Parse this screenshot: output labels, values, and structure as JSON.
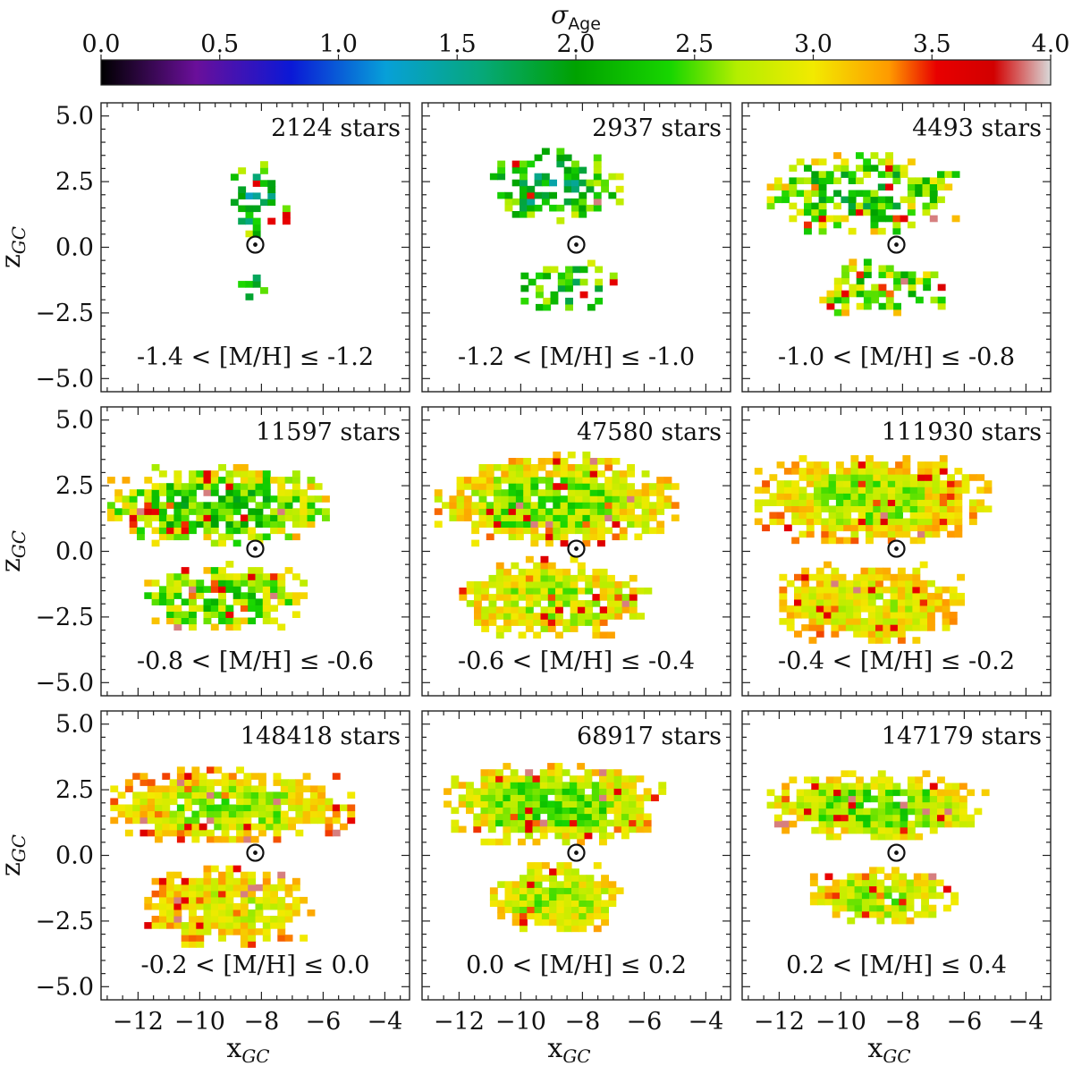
{
  "chart_data": {
    "type": "heatmap",
    "figure_title": "",
    "colorbar": {
      "label": "σ",
      "label_sub": "Age",
      "range": [
        0.0,
        4.0
      ],
      "ticks": [
        "0.0",
        "0.5",
        "1.0",
        "1.5",
        "2.0",
        "2.5",
        "3.0",
        "3.5",
        "4.0"
      ],
      "colormap": "nipy_spectral-like",
      "stops": [
        [
          0.0,
          "#000000"
        ],
        [
          0.1,
          "#6a0f9a"
        ],
        [
          0.2,
          "#0b18d6"
        ],
        [
          0.3,
          "#07a0d8"
        ],
        [
          0.4,
          "#06a87a"
        ],
        [
          0.5,
          "#00a200"
        ],
        [
          0.6,
          "#18d600"
        ],
        [
          0.67,
          "#b4ee00"
        ],
        [
          0.75,
          "#f2ea00"
        ],
        [
          0.83,
          "#ff9a00"
        ],
        [
          0.88,
          "#e80000"
        ],
        [
          0.94,
          "#d20000"
        ],
        [
          1.0,
          "#d9d9d9"
        ]
      ]
    },
    "xlabel": "x",
    "xlabel_sub": "GC",
    "ylabel": "z",
    "ylabel_sub": "GC",
    "xlim": [
      -13.2,
      -3.2
    ],
    "ylim": [
      -5.5,
      5.5
    ],
    "xticks": [
      "−12",
      "−10",
      "−8",
      "−6",
      "−4"
    ],
    "yticks": [
      "5.0",
      "2.5",
      "0.0",
      "−2.5",
      "−5.0"
    ],
    "sun_position": [
      -8.2,
      0.1
    ],
    "panels": [
      {
        "label": "-1.4 < [M/H] ≤ -1.2",
        "count": "2124 stars",
        "mh_center": -1.3,
        "upper": {
          "xmin": -9.0,
          "xmax": -7.0,
          "zmin": 0.4,
          "zmax": 3.2,
          "density": 0.5
        },
        "lower": {
          "xmin": -9.0,
          "xmax": -7.5,
          "zmin": -2.0,
          "zmax": -1.0,
          "density": 0.45
        },
        "sigma_mean": 1.95,
        "sigma_spread": 0.55
      },
      {
        "label": "-1.2 < [M/H] ≤ -1.0",
        "count": "2937 stars",
        "mh_center": -1.1,
        "upper": {
          "xmin": -11.0,
          "xmax": -6.8,
          "zmin": 0.9,
          "zmax": 3.6,
          "density": 0.55
        },
        "lower": {
          "xmin": -10.0,
          "xmax": -7.0,
          "zmin": -2.4,
          "zmax": -0.6,
          "density": 0.5
        },
        "sigma_mean": 2.1,
        "sigma_spread": 0.55
      },
      {
        "label": "-1.0 < [M/H] ≤ -0.8",
        "count": "4493 stars",
        "mh_center": -0.9,
        "upper": {
          "xmin": -12.4,
          "xmax": -6.3,
          "zmin": 0.5,
          "zmax": 3.6,
          "density": 0.65
        },
        "lower": {
          "xmin": -10.7,
          "xmax": -6.8,
          "zmin": -2.6,
          "zmax": -0.5,
          "density": 0.62
        },
        "sigma_mean": 2.45,
        "sigma_spread": 0.55
      },
      {
        "label": "-0.8 < [M/H] ≤ -0.6",
        "count": "11597 stars",
        "mh_center": -0.7,
        "upper": {
          "xmin": -13.0,
          "xmax": -5.8,
          "zmin": 0.2,
          "zmax": 3.3,
          "density": 0.85
        },
        "lower": {
          "xmin": -11.8,
          "xmax": -6.6,
          "zmin": -3.0,
          "zmax": -0.5,
          "density": 0.8
        },
        "sigma_mean": 2.5,
        "sigma_spread": 0.45
      },
      {
        "label": "-0.6 < [M/H] ≤ -0.4",
        "count": "47580 stars",
        "mh_center": -0.5,
        "upper": {
          "xmin": -12.8,
          "xmax": -5.0,
          "zmin": 0.2,
          "zmax": 3.6,
          "density": 0.93
        },
        "lower": {
          "xmin": -12.0,
          "xmax": -5.8,
          "zmin": -3.3,
          "zmax": -0.4,
          "density": 0.9
        },
        "sigma_mean": 2.75,
        "sigma_spread": 0.35
      },
      {
        "label": "-0.4 < [M/H] ≤ -0.2",
        "count": "111930 stars",
        "mh_center": -0.3,
        "upper": {
          "xmin": -12.8,
          "xmax": -5.3,
          "zmin": 0.3,
          "zmax": 3.6,
          "density": 0.95
        },
        "lower": {
          "xmin": -12.0,
          "xmax": -6.0,
          "zmin": -3.5,
          "zmax": -0.4,
          "density": 0.93
        },
        "sigma_mean": 2.85,
        "sigma_spread": 0.3
      },
      {
        "label": "-0.2 < [M/H] ≤ 0.0",
        "count": "148418 stars",
        "mh_center": -0.1,
        "upper": {
          "xmin": -12.9,
          "xmax": -5.1,
          "zmin": 0.5,
          "zmax": 3.3,
          "density": 0.96
        },
        "lower": {
          "xmin": -11.8,
          "xmax": -6.5,
          "zmin": -3.5,
          "zmax": -0.5,
          "density": 0.93
        },
        "sigma_mean": 2.85,
        "sigma_spread": 0.3
      },
      {
        "label": "0.0 < [M/H] ≤ 0.2",
        "count": "68917 stars",
        "mh_center": 0.1,
        "upper": {
          "xmin": -12.5,
          "xmax": -5.3,
          "zmin": 0.4,
          "zmax": 3.4,
          "density": 0.95
        },
        "lower": {
          "xmin": -11.0,
          "xmax": -6.8,
          "zmin": -2.9,
          "zmax": -0.3,
          "density": 0.92
        },
        "sigma_mean": 2.7,
        "sigma_spread": 0.3
      },
      {
        "label": "0.2 < [M/H] ≤ 0.4",
        "count": "147179 stars",
        "mh_center": 0.3,
        "upper": {
          "xmin": -12.4,
          "xmax": -5.4,
          "zmin": 0.6,
          "zmax": 3.1,
          "density": 0.95
        },
        "lower": {
          "xmin": -11.0,
          "xmax": -6.3,
          "zmin": -2.6,
          "zmax": -0.5,
          "density": 0.92
        },
        "sigma_mean": 2.7,
        "sigma_spread": 0.3
      }
    ]
  }
}
